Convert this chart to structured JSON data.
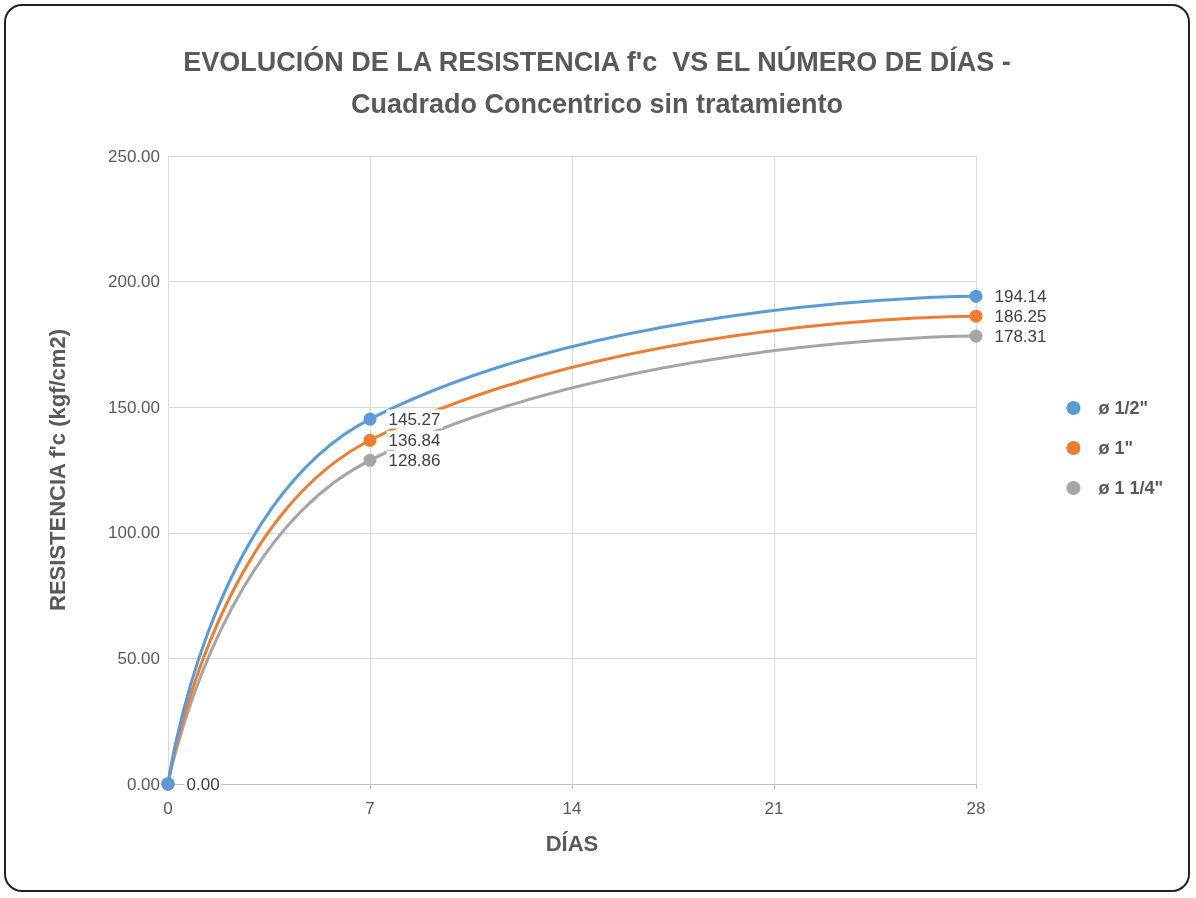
{
  "chart_data": {
    "type": "line",
    "title": "EVOLUCIÓN DE LA RESISTENCIA f'c  VS EL NÚMERO DE DÍAS -\nCuadrado Concentrico sin tratamiento",
    "xlabel": "DÍAS",
    "ylabel": "RESISTENCIA f'c (kgf/cm2)",
    "x": [
      0,
      7,
      28
    ],
    "series": [
      {
        "name": "ø 1/2\"",
        "color": "#5b9bd5",
        "values": [
          0,
          145.27,
          194.14
        ],
        "value_labels": [
          "0.00",
          "145.27",
          "194.14"
        ]
      },
      {
        "name": "ø 1\"",
        "color": "#ed7d31",
        "values": [
          0,
          136.84,
          186.25
        ],
        "value_labels": [
          null,
          "136.84",
          "186.25"
        ]
      },
      {
        "name": "ø 1 1/4\"",
        "color": "#a5a5a5",
        "values": [
          0,
          128.86,
          178.31
        ],
        "value_labels": [
          null,
          "128.86",
          "178.31"
        ]
      }
    ],
    "xlim": [
      0,
      28
    ],
    "xticks": [
      0,
      7,
      14,
      21,
      28
    ],
    "ylim": [
      0,
      250
    ],
    "yticks": [
      {
        "value": 0,
        "label": "0.00"
      },
      {
        "value": 50,
        "label": "50.00"
      },
      {
        "value": 100,
        "label": "100.00"
      },
      {
        "value": 150,
        "label": "150.00"
      },
      {
        "value": 200,
        "label": "200.00"
      },
      {
        "value": 250,
        "label": "250.00"
      }
    ],
    "grid": true,
    "legend": "right",
    "marker": "circle",
    "line_style": "solid"
  }
}
